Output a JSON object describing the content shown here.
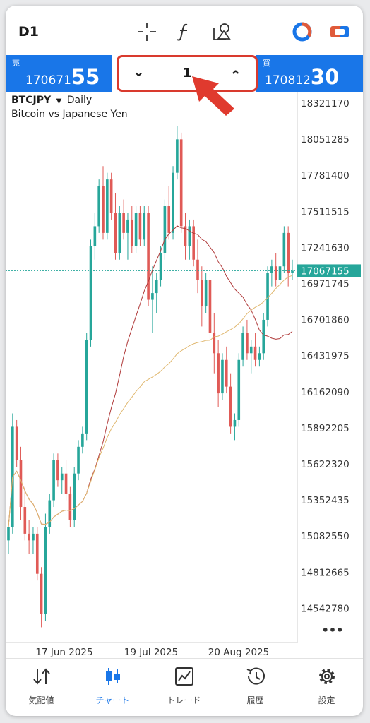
{
  "topbar": {
    "timeframe": "D1",
    "icons": [
      "crosshair-icon",
      "function-icon",
      "objects-icon",
      "network-status-icon",
      "trade-toggle-icon"
    ]
  },
  "quote": {
    "sell_label": "売",
    "sell_small": "170671",
    "sell_big": "55",
    "buy_label": "買",
    "buy_small": "170812",
    "buy_big": "30",
    "lot_value": "1",
    "accent_color": "#1976e8"
  },
  "chart": {
    "symbol": "BTCJPY",
    "period": "Daily",
    "description": "Bitcoin vs Japanese Yen",
    "current_price": "17067155",
    "more": "•••"
  },
  "chart_data": {
    "type": "candlestick",
    "y_ticks": [
      "18321170",
      "18051285",
      "17781400",
      "17511515",
      "17241630",
      "16971745",
      "16701860",
      "16431975",
      "16162090",
      "15892205",
      "15622320",
      "15352435",
      "15082550",
      "14812665",
      "14542780"
    ],
    "x_ticks": [
      "17 Jun 2025",
      "19 Jul 2025",
      "20 Aug 2025"
    ],
    "current_price": 17067155,
    "colors": {
      "bull": "#26a69a",
      "bear": "#e05a56",
      "ma_fast": "#b03a3a",
      "ma_slow": "#e0b870"
    },
    "ohlc": [
      [
        15050000,
        15200000,
        14950000,
        15150000
      ],
      [
        15150000,
        16000000,
        15100000,
        15900000
      ],
      [
        15900000,
        15950000,
        15600000,
        15650000
      ],
      [
        15650000,
        15750000,
        15200000,
        15300000
      ],
      [
        15300000,
        15450000,
        15050000,
        15100000
      ],
      [
        15100000,
        15200000,
        14950000,
        15050000
      ],
      [
        15050000,
        15150000,
        14950000,
        15100000
      ],
      [
        15100000,
        15150000,
        14750000,
        14800000
      ],
      [
        14800000,
        14850000,
        14400000,
        14500000
      ],
      [
        14500000,
        15250000,
        14450000,
        15150000
      ],
      [
        15150000,
        15400000,
        15100000,
        15350000
      ],
      [
        15350000,
        15700000,
        15300000,
        15650000
      ],
      [
        15650000,
        15700000,
        15450000,
        15500000
      ],
      [
        15500000,
        15600000,
        15400000,
        15550000
      ],
      [
        15550000,
        15650000,
        15350000,
        15400000
      ],
      [
        15400000,
        15450000,
        15150000,
        15200000
      ],
      [
        15200000,
        15600000,
        15150000,
        15550000
      ],
      [
        15550000,
        15800000,
        15500000,
        15750000
      ],
      [
        15750000,
        15900000,
        15700000,
        15850000
      ],
      [
        15850000,
        16600000,
        15800000,
        16550000
      ],
      [
        16550000,
        17300000,
        16500000,
        17250000
      ],
      [
        17250000,
        17500000,
        17150000,
        17400000
      ],
      [
        17400000,
        17750000,
        17350000,
        17700000
      ],
      [
        17700000,
        17850000,
        17300000,
        17350000
      ],
      [
        17350000,
        17800000,
        17300000,
        17750000
      ],
      [
        17750000,
        17800000,
        17450000,
        17500000
      ],
      [
        17500000,
        17650000,
        17150000,
        17200000
      ],
      [
        17200000,
        17550000,
        17150000,
        17500000
      ],
      [
        17500000,
        17600000,
        17300000,
        17350000
      ],
      [
        17350000,
        17500000,
        17150000,
        17450000
      ],
      [
        17450000,
        17550000,
        17200000,
        17250000
      ],
      [
        17250000,
        17550000,
        17200000,
        17500000
      ],
      [
        17500000,
        17550000,
        17250000,
        17300000
      ],
      [
        17300000,
        17550000,
        17250000,
        17500000
      ],
      [
        17500000,
        17550000,
        16800000,
        16850000
      ],
      [
        16850000,
        17100000,
        16600000,
        16900000
      ],
      [
        16900000,
        17050000,
        16750000,
        17000000
      ],
      [
        17000000,
        17250000,
        16950000,
        17200000
      ],
      [
        17200000,
        17600000,
        17150000,
        17550000
      ],
      [
        17550000,
        17700000,
        17300000,
        17350000
      ],
      [
        17350000,
        17850000,
        17300000,
        17800000
      ],
      [
        17800000,
        18150000,
        17750000,
        18050000
      ],
      [
        18050000,
        18100000,
        17350000,
        17400000
      ],
      [
        17400000,
        17500000,
        17150000,
        17250000
      ],
      [
        17250000,
        17450000,
        17150000,
        17400000
      ],
      [
        17400000,
        17450000,
        17100000,
        17150000
      ],
      [
        17150000,
        17300000,
        16900000,
        17000000
      ],
      [
        17000000,
        17100000,
        16650000,
        16800000
      ],
      [
        16800000,
        17050000,
        16750000,
        17000000
      ],
      [
        17000000,
        17050000,
        16550000,
        16600000
      ],
      [
        16600000,
        16750000,
        16300000,
        16450000
      ],
      [
        16450000,
        16550000,
        16050000,
        16150000
      ],
      [
        16150000,
        16450000,
        16100000,
        16400000
      ],
      [
        16400000,
        16500000,
        16150000,
        16200000
      ],
      [
        16200000,
        16300000,
        15850000,
        15900000
      ],
      [
        15900000,
        16000000,
        15800000,
        15950000
      ],
      [
        15950000,
        16450000,
        15900000,
        16400000
      ],
      [
        16400000,
        16650000,
        16350000,
        16600000
      ],
      [
        16600000,
        16700000,
        16400000,
        16450000
      ],
      [
        16450000,
        16550000,
        16300000,
        16500000
      ],
      [
        16500000,
        16600000,
        16350000,
        16400000
      ],
      [
        16400000,
        16500000,
        16350000,
        16450000
      ],
      [
        16450000,
        16750000,
        16400000,
        16700000
      ],
      [
        16700000,
        17100000,
        16650000,
        17050000
      ],
      [
        17050000,
        17150000,
        16950000,
        17100000
      ],
      [
        17100000,
        17200000,
        16950000,
        17000000
      ],
      [
        17000000,
        17150000,
        16950000,
        17100000
      ],
      [
        17100000,
        17400000,
        17050000,
        17350000
      ],
      [
        17350000,
        17400000,
        16950000,
        17050000
      ],
      [
        17050000,
        17150000,
        17000000,
        17067155
      ]
    ]
  },
  "nav": {
    "items": [
      {
        "label": "気配値",
        "icon": "quotes-icon"
      },
      {
        "label": "チャート",
        "icon": "chart-icon"
      },
      {
        "label": "トレード",
        "icon": "trade-icon"
      },
      {
        "label": "履歴",
        "icon": "history-icon"
      },
      {
        "label": "設定",
        "icon": "settings-icon"
      }
    ]
  }
}
